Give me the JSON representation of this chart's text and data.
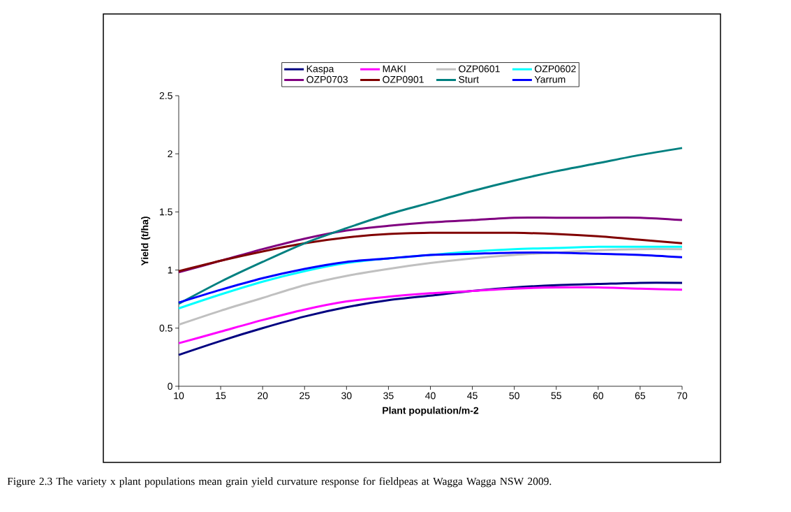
{
  "chart_data": {
    "type": "line",
    "xlabel": "Plant population/m-2",
    "ylabel": "Yield (t/ha)",
    "x": [
      10,
      15,
      20,
      25,
      30,
      35,
      40,
      45,
      50,
      55,
      60,
      65,
      70
    ],
    "series": [
      {
        "name": "Kaspa",
        "color": "#000080",
        "values": [
          0.27,
          0.39,
          0.5,
          0.6,
          0.68,
          0.74,
          0.78,
          0.82,
          0.85,
          0.87,
          0.88,
          0.89,
          0.89
        ]
      },
      {
        "name": "MAKI",
        "color": "#ff00ff",
        "values": [
          0.37,
          0.47,
          0.57,
          0.66,
          0.73,
          0.77,
          0.8,
          0.82,
          0.84,
          0.85,
          0.85,
          0.84,
          0.83
        ]
      },
      {
        "name": "OZP0601",
        "color": "#c0c0c0",
        "values": [
          0.53,
          0.65,
          0.76,
          0.87,
          0.95,
          1.01,
          1.06,
          1.1,
          1.13,
          1.15,
          1.17,
          1.18,
          1.18
        ]
      },
      {
        "name": "OZP0602",
        "color": "#00ffff",
        "values": [
          0.67,
          0.79,
          0.9,
          0.99,
          1.06,
          1.1,
          1.13,
          1.16,
          1.18,
          1.19,
          1.2,
          1.2,
          1.2
        ]
      },
      {
        "name": "OZP0703",
        "color": "#800080",
        "values": [
          0.98,
          1.08,
          1.18,
          1.27,
          1.34,
          1.38,
          1.41,
          1.43,
          1.45,
          1.45,
          1.45,
          1.45,
          1.43
        ]
      },
      {
        "name": "OZP0901",
        "color": "#800000",
        "values": [
          0.99,
          1.08,
          1.16,
          1.23,
          1.28,
          1.31,
          1.32,
          1.32,
          1.32,
          1.31,
          1.29,
          1.26,
          1.23
        ]
      },
      {
        "name": "Sturt",
        "color": "#008080",
        "values": [
          0.71,
          0.9,
          1.07,
          1.23,
          1.36,
          1.48,
          1.58,
          1.68,
          1.77,
          1.85,
          1.92,
          1.99,
          2.05
        ]
      },
      {
        "name": "Yarrum",
        "color": "#0000ff",
        "values": [
          0.72,
          0.83,
          0.93,
          1.01,
          1.07,
          1.1,
          1.13,
          1.14,
          1.15,
          1.15,
          1.14,
          1.13,
          1.11
        ]
      }
    ],
    "xlim": [
      10,
      70
    ],
    "ylim": [
      0,
      2.5
    ],
    "xticks": [
      10,
      15,
      20,
      25,
      30,
      35,
      40,
      45,
      50,
      55,
      60,
      65,
      70
    ],
    "yticks": [
      0,
      0.5,
      1,
      1.5,
      2,
      2.5
    ],
    "legend": "top",
    "annotations": [
      "Figure 2.3 The variety x plant populations mean grain yield curvature response for fieldpeas at Wagga Wagga NSW 2009."
    ]
  }
}
